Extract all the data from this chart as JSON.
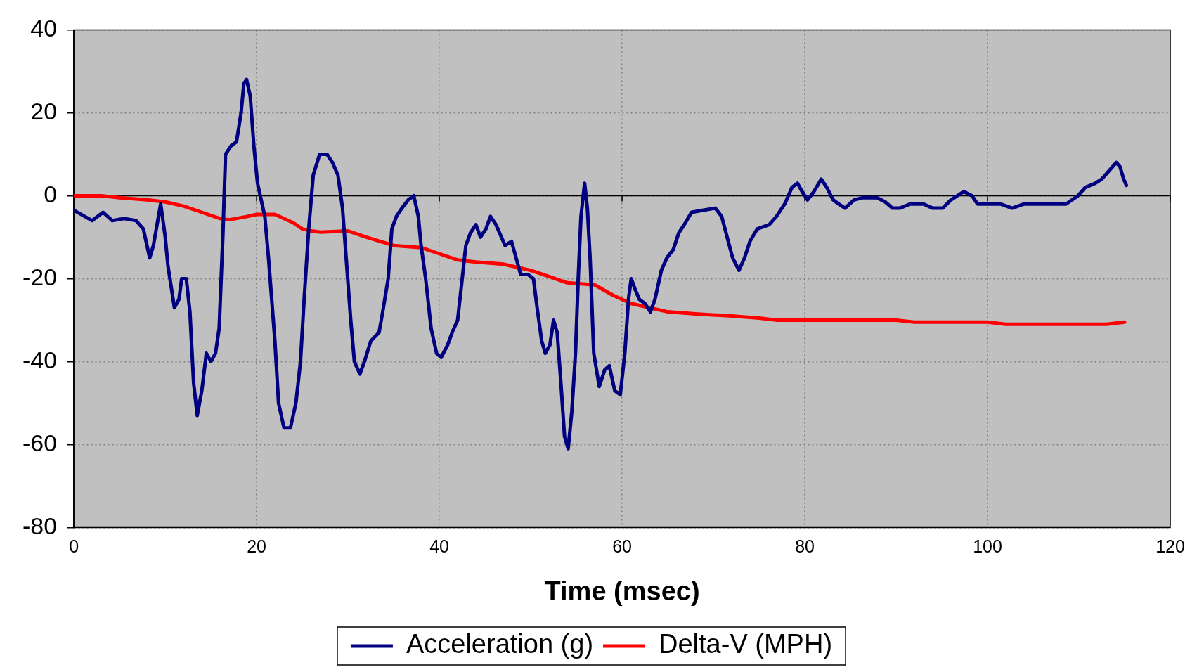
{
  "chart_data": {
    "type": "line",
    "xlabel": "Time (msec)",
    "xlim": [
      0,
      120
    ],
    "xticks": [
      0,
      20,
      40,
      60,
      80,
      100,
      120
    ],
    "ylim": [
      -80,
      40
    ],
    "yticks": [
      -80,
      -60,
      -40,
      -20,
      0,
      20,
      40
    ],
    "grid": true,
    "legend": "bottom",
    "marker": "none",
    "line_style": "solid",
    "ref_lines": [
      {
        "axis": "y",
        "value": 0,
        "color": "#000000",
        "line_style": "solid"
      }
    ],
    "series": [
      {
        "name": "Acceleration (g)",
        "color": "#000080",
        "x": [
          0,
          2,
          3.2,
          4.2,
          5.5,
          6.8,
          7.6,
          8.3,
          8.7,
          9.5,
          10,
          10.3,
          11,
          11.5,
          11.8,
          12.3,
          12.7,
          13.1,
          13.5,
          14,
          14.5,
          15,
          15.5,
          15.9,
          16.3,
          16.6,
          17.2,
          17.8,
          18.3,
          18.6,
          18.9,
          19.3,
          19.7,
          20.1,
          20.9,
          21.3,
          22,
          22.4,
          23,
          23.7,
          24.3,
          24.8,
          25.2,
          25.7,
          26.2,
          26.9,
          27.7,
          28.3,
          28.9,
          29.4,
          29.8,
          30.3,
          30.7,
          31.3,
          31.8,
          32.5,
          33.4,
          33.8,
          34.4,
          34.8,
          35.3,
          35.9,
          36.6,
          37.2,
          37.7,
          38,
          38.5,
          39.1,
          39.7,
          40.2,
          40.9,
          41.4,
          42,
          42.5,
          42.9,
          43.4,
          44,
          44.5,
          45.1,
          45.6,
          46.2,
          46.8,
          47.2,
          47.9,
          48.4,
          48.9,
          49.7,
          50.3,
          50.7,
          51.2,
          51.6,
          52.1,
          52.5,
          52.9,
          53.3,
          53.7,
          54.1,
          54.5,
          54.9,
          55.2,
          55.5,
          55.9,
          56.2,
          56.5,
          56.9,
          57.5,
          58.1,
          58.6,
          59.2,
          59.8,
          60.3,
          60.7,
          61,
          61.5,
          61.9,
          62.5,
          63.1,
          63.6,
          64.3,
          64.9,
          65.6,
          66.2,
          66.8,
          67.6,
          68.9,
          70.2,
          70.9,
          71.5,
          72.1,
          72.8,
          73.4,
          74,
          74.8,
          76.1,
          76.9,
          77.8,
          78.6,
          79.2,
          79.7,
          80.3,
          81,
          81.8,
          82.4,
          83.1,
          83.7,
          84.4,
          85.4,
          86.3,
          87.9,
          88.8,
          89.6,
          90.4,
          91.5,
          93,
          94,
          95.1,
          96,
          97.4,
          98.3,
          98.9,
          100.6,
          101.4,
          102.7,
          104,
          105.7,
          108.6,
          109.9,
          110.7,
          111.8,
          112.5,
          113.3,
          114.1,
          114.5,
          114.9,
          115.2
        ],
        "values": [
          -3.5,
          -6,
          -4,
          -6,
          -5.5,
          -6,
          -8,
          -15,
          -12,
          -2,
          -10,
          -17,
          -27,
          -25,
          -20,
          -20,
          -28,
          -45,
          -53,
          -47,
          -38,
          -40,
          -38,
          -32,
          -10,
          10,
          12,
          13,
          20,
          27,
          28,
          24,
          12,
          3,
          -5,
          -15,
          -35,
          -50,
          -56,
          -56,
          -50,
          -40,
          -25,
          -8,
          5,
          10,
          10,
          8,
          5,
          -3,
          -15,
          -30,
          -40,
          -43,
          -40,
          -35,
          -33,
          -28,
          -20,
          -8,
          -5,
          -3,
          -1,
          0,
          -5,
          -12,
          -20,
          -32,
          -38,
          -39,
          -36,
          -33,
          -30,
          -20,
          -12,
          -9,
          -7,
          -10,
          -8,
          -5,
          -7,
          -10,
          -12,
          -11,
          -15,
          -19,
          -19,
          -20,
          -27,
          -35,
          -38,
          -36,
          -30,
          -33,
          -45,
          -58,
          -61,
          -52,
          -38,
          -20,
          -5,
          3,
          -3,
          -15,
          -38,
          -46,
          -42,
          -41,
          -47,
          -48,
          -38,
          -25,
          -20,
          -23,
          -25,
          -26,
          -28,
          -25,
          -18,
          -15,
          -13,
          -9,
          -7,
          -4,
          -3.5,
          -3,
          -5,
          -10,
          -15,
          -18,
          -15,
          -11,
          -8,
          -7,
          -5,
          -2,
          2,
          3,
          1,
          -1,
          1,
          4,
          2,
          -1,
          -2,
          -3,
          -1,
          -0.5,
          -0.5,
          -1.5,
          -3,
          -3,
          -2,
          -2,
          -3,
          -3,
          -1,
          1,
          0,
          -2,
          -2,
          -2,
          -3,
          -2,
          -2,
          -2,
          0,
          2,
          3,
          4,
          6,
          8,
          7,
          4,
          2.5
        ]
      },
      {
        "name": "Delta-V (MPH)",
        "color": "#ff0000",
        "x": [
          0,
          3,
          5,
          8,
          10,
          12,
          14,
          16,
          17,
          19,
          20,
          22,
          24,
          25,
          26,
          27,
          30,
          32,
          35,
          38,
          40,
          42,
          44,
          47,
          50,
          52,
          54,
          57,
          59,
          61,
          63,
          65,
          68,
          72,
          75,
          77,
          90,
          92,
          100,
          102,
          113,
          115
        ],
        "values": [
          0,
          0,
          -0.5,
          -1,
          -1.5,
          -2.5,
          -4,
          -5.5,
          -5.8,
          -5,
          -4.5,
          -4.5,
          -6.5,
          -8,
          -8.5,
          -8.8,
          -8.5,
          -10,
          -12,
          -12.5,
          -14,
          -15.5,
          -16,
          -16.5,
          -18,
          -19.5,
          -21,
          -21.5,
          -24,
          -26,
          -27,
          -28,
          -28.5,
          -29,
          -29.5,
          -30,
          -30,
          -30.5,
          -30.5,
          -31,
          -31,
          -30.5
        ]
      }
    ]
  }
}
